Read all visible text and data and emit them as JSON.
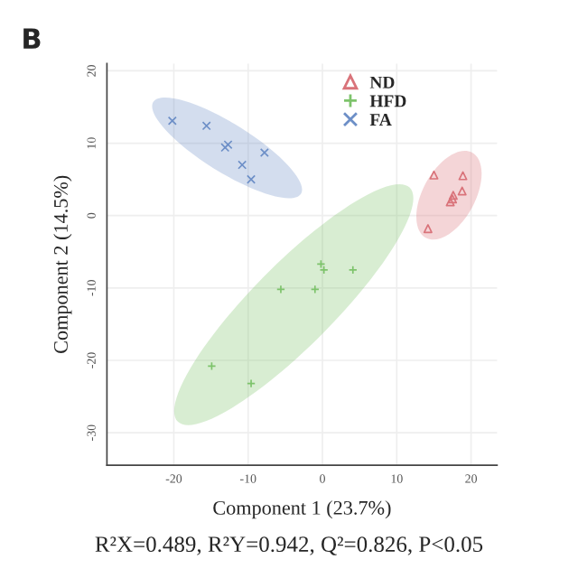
{
  "chart_data": {
    "type": "scatter",
    "title": "B",
    "xlabel": "Component 1 (23.7%)",
    "ylabel": "Component 2 (14.5%)",
    "xlim": [
      -29,
      23.5
    ],
    "ylim": [
      -34.5,
      21
    ],
    "xticks": [
      -20,
      -10,
      0,
      10,
      20
    ],
    "yticks": [
      -30,
      -20,
      -10,
      0,
      10,
      20
    ],
    "grid": true,
    "legend": "top right",
    "annotations": [
      "R²X=0.489, R²Y=0.942, Q²=0.826, P<0.05"
    ],
    "series": [
      {
        "name": "ND",
        "color": "#d9737a",
        "marker": "triangle",
        "x": [
          15,
          18.9,
          18.8,
          17.6,
          17.2,
          17.5,
          14.2
        ],
        "values": [
          5.6,
          5.5,
          3.4,
          2.8,
          1.9,
          2.3,
          -1.8
        ]
      },
      {
        "name": "HFD",
        "color": "#7dc36b",
        "marker": "plus",
        "x": [
          -0.2,
          0.2,
          4.1,
          -5.6,
          -1,
          -14.9,
          -9.6
        ],
        "values": [
          -6.7,
          -7.5,
          -7.5,
          -10.2,
          -10.2,
          -20.8,
          -23.2
        ]
      },
      {
        "name": "FA",
        "color": "#6d8fc7",
        "marker": "cross",
        "x": [
          -20.2,
          -15.6,
          -13.1,
          -12.7,
          -10.8,
          -9.6,
          -7.8
        ],
        "values": [
          13.1,
          12.4,
          9.4,
          9.8,
          7,
          5,
          8.7
        ]
      }
    ]
  }
}
